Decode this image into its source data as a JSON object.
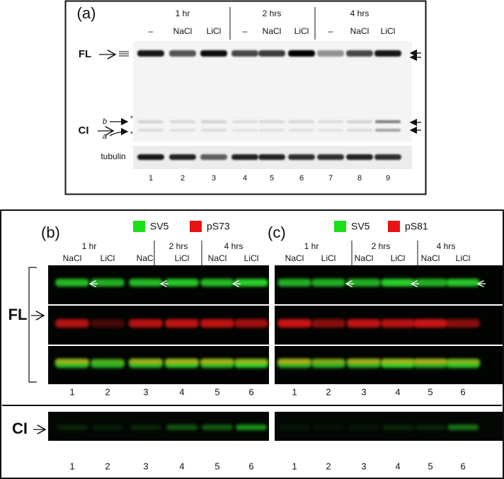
{
  "panel_a": {
    "label": "(a)",
    "times": [
      "1 hr",
      "2 hrs",
      "4 hrs"
    ],
    "treatments": [
      "–",
      "NaCl",
      "LiCl",
      "–",
      "NaCl",
      "LiCl",
      "–",
      "NaCl",
      "LiCl"
    ],
    "fl_label": "FL",
    "ci_label": "CI",
    "ci_bands": [
      "b",
      "a"
    ],
    "asterisks": [
      "*",
      "*"
    ],
    "loading_label": "tubulin",
    "lanes": [
      "1",
      "2",
      "3",
      "4",
      "5",
      "6",
      "7",
      "8",
      "9"
    ]
  },
  "panel_b": {
    "label": "(b)",
    "legend": [
      "SV5",
      "pS73"
    ],
    "times": [
      "1 hr",
      "2 hrs",
      "4 hrs"
    ],
    "treatments": [
      "NaCl",
      "LiCl",
      "NaCl",
      "LiCl",
      "NaCl",
      "LiCl"
    ],
    "lanes": [
      "1",
      "2",
      "3",
      "4",
      "5",
      "6"
    ],
    "ci_lanes": [
      "1",
      "2",
      "3",
      "4",
      "5",
      "6"
    ]
  },
  "panel_c": {
    "label": "(c)",
    "legend": [
      "SV5",
      "pS81"
    ],
    "times": [
      "1 hr",
      "2 hrs",
      "4 hrs"
    ],
    "treatments": [
      "NaCl",
      "LiCl",
      "NaCl",
      "LiCl",
      "NaCl",
      "LiCl"
    ],
    "lanes": [
      "1",
      "2",
      "3",
      "4",
      "5",
      "6"
    ],
    "ci_lanes": [
      "1",
      "2",
      "3",
      "4",
      "5",
      "6"
    ]
  },
  "fl_label": "FL",
  "ci_label": "CI"
}
